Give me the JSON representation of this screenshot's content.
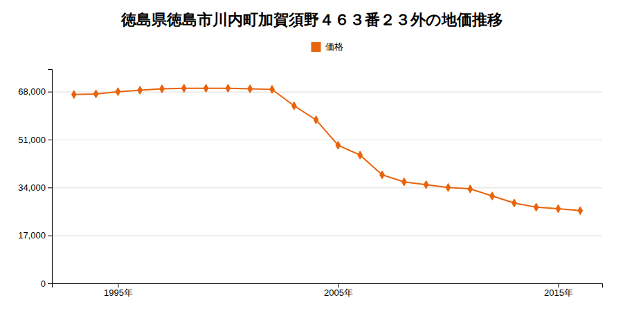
{
  "chart_data": {
    "type": "line",
    "title": "徳島県徳島市川内町加賀須野４６３番２３外の地価推移",
    "x": [
      1993,
      1994,
      1995,
      1996,
      1997,
      1998,
      1999,
      2000,
      2001,
      2002,
      2003,
      2004,
      2005,
      2006,
      2007,
      2008,
      2009,
      2010,
      2011,
      2012,
      2013,
      2014,
      2015,
      2016
    ],
    "series": [
      {
        "name": "価格",
        "color": "#e8630a",
        "marker": "diamond",
        "line_style": "solid",
        "values": [
          67000,
          67200,
          68000,
          68500,
          69000,
          69200,
          69200,
          69200,
          69000,
          68800,
          63000,
          58000,
          49000,
          45500,
          38500,
          36000,
          35000,
          34000,
          33500,
          31000,
          28500,
          27000,
          26500,
          25800
        ]
      }
    ],
    "xlim": [
      1992,
      2017
    ],
    "xticks": [
      {
        "value": 1995,
        "label": "1995年"
      },
      {
        "value": 2005,
        "label": "2005年"
      },
      {
        "value": 2015,
        "label": "2015年"
      }
    ],
    "ylim": [
      0,
      76000
    ],
    "yticks": [
      0,
      {
        "value": 17000,
        "label": "17,000"
      },
      {
        "value": 34000,
        "label": "34,000"
      },
      {
        "value": 51000,
        "label": "51,000"
      },
      {
        "value": 68000,
        "label": "68,000"
      }
    ],
    "grid": true,
    "legend": "top"
  }
}
